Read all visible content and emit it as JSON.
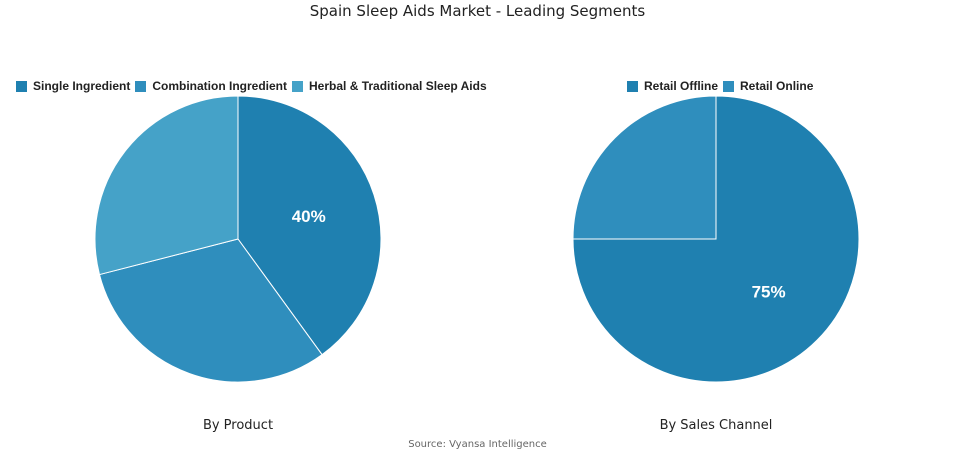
{
  "title": "Spain Sleep Aids Market - Leading Segments",
  "source": "Source: Vyansa Intelligence",
  "chart_data": [
    {
      "type": "pie",
      "title": "By Product",
      "categories": [
        "Single Ingredient",
        "Combination Ingredient",
        "Herbal & Traditional Sleep Aids"
      ],
      "values": [
        40,
        31,
        29
      ],
      "data_labels": [
        "40%",
        "",
        ""
      ],
      "colors": [
        "#1f80b0",
        "#2f8ebd",
        "#45a2c8"
      ],
      "legend": "top"
    },
    {
      "type": "pie",
      "title": "By Sales Channel",
      "categories": [
        "Retail Offline",
        "Retail Online"
      ],
      "values": [
        75,
        25
      ],
      "data_labels": [
        "75%",
        ""
      ],
      "colors": [
        "#1f80b0",
        "#2f8ebd"
      ],
      "legend": "top"
    }
  ]
}
